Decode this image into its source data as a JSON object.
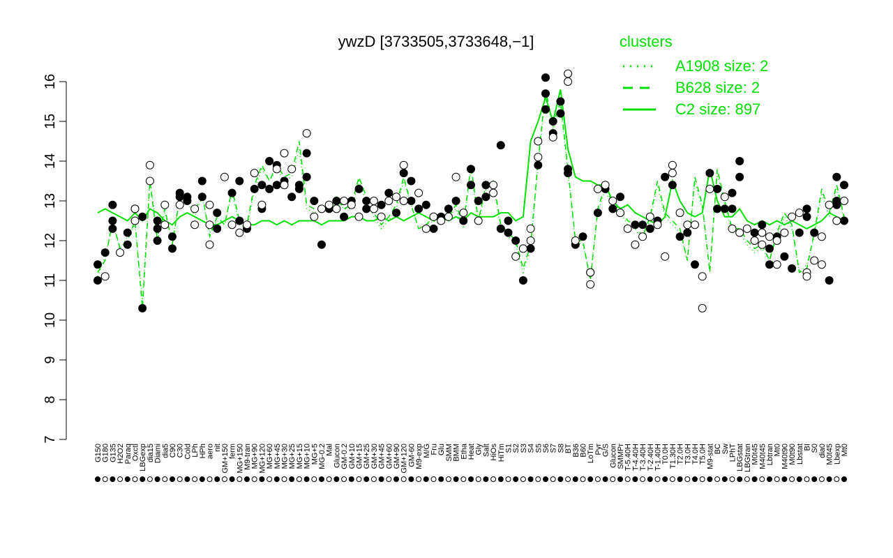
{
  "chart_data": {
    "type": "line",
    "title": "ywzD [3733505,3733648,−1]",
    "xlabel": "",
    "ylabel": "",
    "ylim": [
      7,
      16.5
    ],
    "yticks": [
      7,
      8,
      9,
      10,
      11,
      12,
      13,
      14,
      15,
      16
    ],
    "grid": false,
    "legend": {
      "position": "top-right",
      "title": "clusters",
      "entries": [
        {
          "label": "A1908 size: 2",
          "style": "dotted",
          "color": "#00e000"
        },
        {
          "label": "B628 size: 2",
          "style": "dashed",
          "color": "#00e000"
        },
        {
          "label": "C2 size: 897",
          "style": "solid",
          "color": "#00e000"
        }
      ]
    },
    "x_tick_labels": [
      "G150",
      "G180",
      "G135",
      "H2O2",
      "Paraq",
      "Oxctl",
      "LBGexp",
      "dia15",
      "Diami",
      "dia5",
      "C90",
      "C30",
      "Cold",
      "LPh",
      "HPh",
      "aero",
      "nit",
      "GM+150",
      "ferm",
      "MG+150",
      "M9-tran",
      "MG+90",
      "MG+120",
      "MG+60",
      "MG+45",
      "MG+30",
      "MG+25",
      "MG+15",
      "MG+10",
      "MG+5",
      "MG-0.2",
      "Mal",
      "Glucon",
      "GM-0.2",
      "GM+10",
      "GM+15",
      "GM+25",
      "GM+30",
      "GM+45",
      "GM+60",
      "GM+90",
      "GM+120",
      "GM-60",
      "M9-exp",
      "M/G",
      "Fru",
      "Glu",
      "SMM",
      "BMM",
      "Etha",
      "Heat",
      "Gly",
      "Salt",
      "HiOs",
      "HiTm",
      "S1",
      "S2",
      "S3",
      "S4",
      "S5",
      "S6",
      "S7",
      "S8",
      "BT",
      "B36",
      "B60",
      "LoTm",
      "Pyr",
      "G/S",
      "Glucon",
      "SMMPr",
      "T-5.40H",
      "T-4.40H",
      "T-3.40H",
      "T-2.40H",
      "T-1.40H",
      "T0.0H",
      "T1.30H",
      "T2.0H",
      "T3.0H",
      "T4.0H",
      "T5.0H",
      "M9-stat",
      "BC",
      "Sw",
      "LPhT",
      "LBGstat",
      "LBGtran",
      "M0t45",
      "M40t45",
      "Lbtran",
      "Mt0",
      "M40t90",
      "M0t90",
      "Lbstat",
      "BI",
      "S0",
      "dia0",
      "M0t45",
      "Lbexp",
      "Mt0"
    ],
    "series": [
      {
        "name": "C2 size: 897",
        "style": "solid",
        "y": [
          12.7,
          12.8,
          12.7,
          12.6,
          12.5,
          12.7,
          12.5,
          12.8,
          12.7,
          12.5,
          12.4,
          12.6,
          12.7,
          12.6,
          12.5,
          12.4,
          12.4,
          12.5,
          12.6,
          12.5,
          12.4,
          12.4,
          12.5,
          12.5,
          12.4,
          12.5,
          12.4,
          12.5,
          12.5,
          12.5,
          12.4,
          12.5,
          12.5,
          12.5,
          12.6,
          12.6,
          12.5,
          12.5,
          12.6,
          12.5,
          12.6,
          12.5,
          12.6,
          12.7,
          12.6,
          12.5,
          12.6,
          12.5,
          12.6,
          12.5,
          12.7,
          12.6,
          12.6,
          12.6,
          12.7,
          12.7,
          12.5,
          12.6,
          14.5,
          15.0,
          15.6,
          15.0,
          15.8,
          14.3,
          13.6,
          13.5,
          13.5,
          13.4,
          13.4,
          13.0,
          12.8,
          12.9,
          12.7,
          12.6,
          12.5,
          12.4,
          12.6,
          13.5,
          13.0,
          12.7,
          12.6,
          12.7,
          13.8,
          13.0,
          12.6,
          12.6,
          12.8,
          12.5,
          12.4,
          12.5,
          12.4,
          12.5,
          12.4,
          12.5,
          12.4,
          12.3,
          12.4,
          12.5,
          12.7,
          12.6,
          12.5
        ]
      },
      {
        "name": "B628 size: 2",
        "style": "dashed",
        "y": [
          11.2,
          11.5,
          12.5,
          11.8,
          12.0,
          12.5,
          10.3,
          13.5,
          12.0,
          12.8,
          11.9,
          13.1,
          13.1,
          12.7,
          13.2,
          12.1,
          12.6,
          12.4,
          13.3,
          12.5,
          12.4,
          13.4,
          13.9,
          13.5,
          13.9,
          13.6,
          13.7,
          14.5,
          12.9,
          12.8,
          12.8,
          12.8,
          13.1,
          12.8,
          12.9,
          13.6,
          13.1,
          12.7,
          12.4,
          12.6,
          12.9,
          13.6,
          12.9,
          12.3,
          12.4,
          12.6,
          12.5,
          12.6,
          12.9,
          12.4,
          13.9,
          12.5,
          13.4,
          13.5,
          12.4,
          12.2,
          12.0,
          11.3,
          11.9,
          14.0,
          15.8,
          14.9,
          15.5,
          13.8,
          12.0,
          12.0,
          11.0,
          12.8,
          13.4,
          12.9,
          12.8,
          12.5,
          12.4,
          12.1,
          12.6,
          13.5,
          12.7,
          12.5,
          12.3,
          11.5,
          13.6,
          12.9,
          11.2,
          13.8,
          13.0,
          12.3,
          12.3,
          12.0,
          11.8,
          11.9,
          11.5,
          12.2,
          12.7,
          12.4,
          11.2,
          11.3,
          12.2,
          13.3,
          12.7,
          13.4,
          12.6
        ]
      },
      {
        "name": "A1908 size: 2",
        "style": "dotted",
        "y": [
          11.1,
          11.6,
          12.4,
          11.8,
          12.1,
          12.4,
          10.5,
          13.6,
          12.1,
          12.7,
          12.0,
          13.0,
          13.0,
          12.6,
          13.1,
          12.2,
          12.5,
          12.4,
          13.2,
          12.4,
          12.3,
          13.3,
          13.8,
          13.5,
          13.8,
          13.5,
          13.6,
          14.3,
          12.8,
          12.7,
          12.8,
          12.7,
          13.0,
          12.8,
          12.8,
          13.5,
          13.0,
          12.6,
          12.3,
          12.5,
          12.8,
          13.5,
          12.9,
          12.3,
          12.4,
          12.5,
          12.4,
          12.6,
          12.8,
          12.3,
          13.8,
          12.4,
          13.3,
          13.4,
          12.3,
          12.1,
          11.9,
          11.2,
          11.8,
          13.9,
          15.7,
          14.8,
          15.4,
          13.7,
          12.0,
          11.9,
          11.1,
          12.7,
          13.3,
          12.8,
          12.7,
          12.4,
          12.3,
          12.0,
          12.5,
          13.4,
          12.6,
          12.4,
          12.2,
          11.5,
          13.5,
          12.8,
          11.3,
          13.7,
          12.9,
          12.2,
          12.2,
          11.9,
          11.7,
          11.8,
          11.5,
          12.1,
          12.6,
          12.3,
          11.2,
          11.4,
          12.1,
          13.2,
          12.6,
          13.3,
          12.5
        ]
      }
    ],
    "points": {
      "filled": [
        [
          0,
          11.0
        ],
        [
          0,
          11.4
        ],
        [
          1,
          11.7
        ],
        [
          2,
          12.3
        ],
        [
          2,
          12.9
        ],
        [
          2,
          12.5
        ],
        [
          4,
          11.9
        ],
        [
          4,
          12.2
        ],
        [
          5,
          12.8
        ],
        [
          6,
          10.3
        ],
        [
          6,
          12.6
        ],
        [
          8,
          12.0
        ],
        [
          8,
          12.5
        ],
        [
          8,
          12.3
        ],
        [
          10,
          11.8
        ],
        [
          10,
          12.1
        ],
        [
          11,
          13.1
        ],
        [
          11,
          13.2
        ],
        [
          12,
          13.0
        ],
        [
          12,
          13.1
        ],
        [
          14,
          13.5
        ],
        [
          14,
          13.1
        ],
        [
          16,
          12.3
        ],
        [
          16,
          12.7
        ],
        [
          18,
          13.2
        ],
        [
          19,
          12.5
        ],
        [
          19,
          13.5
        ],
        [
          20,
          12.3
        ],
        [
          21,
          13.3
        ],
        [
          22,
          12.8
        ],
        [
          22,
          13.4
        ],
        [
          23,
          14.0
        ],
        [
          23,
          13.3
        ],
        [
          24,
          13.4
        ],
        [
          24,
          13.9
        ],
        [
          25,
          13.5
        ],
        [
          26,
          13.1
        ],
        [
          27,
          13.3
        ],
        [
          27,
          13.4
        ],
        [
          28,
          14.2
        ],
        [
          28,
          13.6
        ],
        [
          29,
          13.0
        ],
        [
          30,
          11.9
        ],
        [
          31,
          12.8
        ],
        [
          32,
          13.0
        ],
        [
          33,
          12.6
        ],
        [
          34,
          13.0
        ],
        [
          35,
          13.3
        ],
        [
          36,
          12.8
        ],
        [
          36,
          13.0
        ],
        [
          38,
          12.9
        ],
        [
          39,
          13.2
        ],
        [
          40,
          12.7
        ],
        [
          41,
          13.7
        ],
        [
          42,
          13.5
        ],
        [
          42,
          13.0
        ],
        [
          43,
          12.8
        ],
        [
          44,
          12.9
        ],
        [
          45,
          12.3
        ],
        [
          46,
          12.6
        ],
        [
          47,
          12.8
        ],
        [
          48,
          13.0
        ],
        [
          49,
          12.5
        ],
        [
          50,
          13.4
        ],
        [
          50,
          13.8
        ],
        [
          51,
          13.0
        ],
        [
          52,
          13.4
        ],
        [
          52,
          13.1
        ],
        [
          54,
          14.4
        ],
        [
          54,
          12.3
        ],
        [
          55,
          12.2
        ],
        [
          55,
          12.5
        ],
        [
          56,
          12.0
        ],
        [
          57,
          11.0
        ],
        [
          58,
          11.8
        ],
        [
          59,
          13.9
        ],
        [
          60,
          15.7
        ],
        [
          60,
          16.1
        ],
        [
          60,
          15.3
        ],
        [
          61,
          14.7
        ],
        [
          61,
          15.0
        ],
        [
          62,
          15.5
        ],
        [
          62,
          15.2
        ],
        [
          63,
          13.8
        ],
        [
          63,
          13.7
        ],
        [
          64,
          11.9
        ],
        [
          65,
          12.1
        ],
        [
          67,
          12.7
        ],
        [
          68,
          13.3
        ],
        [
          69,
          12.8
        ],
        [
          70,
          13.1
        ],
        [
          72,
          12.4
        ],
        [
          73,
          12.4
        ],
        [
          74,
          12.3
        ],
        [
          75,
          12.5
        ],
        [
          76,
          13.6
        ],
        [
          77,
          13.4
        ],
        [
          78,
          12.1
        ],
        [
          79,
          12.2
        ],
        [
          80,
          11.4
        ],
        [
          82,
          13.7
        ],
        [
          83,
          13.3
        ],
        [
          83,
          12.8
        ],
        [
          84,
          12.8
        ],
        [
          85,
          13.2
        ],
        [
          85,
          12.8
        ],
        [
          86,
          14.0
        ],
        [
          86,
          13.6
        ],
        [
          88,
          12.2
        ],
        [
          89,
          12.4
        ],
        [
          90,
          11.4
        ],
        [
          90,
          11.8
        ],
        [
          91,
          12.1
        ],
        [
          92,
          11.6
        ],
        [
          93,
          11.3
        ],
        [
          94,
          12.2
        ],
        [
          95,
          12.8
        ],
        [
          95,
          12.6
        ],
        [
          96,
          12.2
        ],
        [
          98,
          11.0
        ],
        [
          99,
          12.9
        ],
        [
          99,
          13.0
        ],
        [
          99,
          13.6
        ],
        [
          100,
          13.4
        ],
        [
          100,
          12.5
        ]
      ],
      "open": [
        [
          1,
          11.1
        ],
        [
          3,
          11.7
        ],
        [
          5,
          12.5
        ],
        [
          5,
          12.8
        ],
        [
          7,
          13.9
        ],
        [
          7,
          13.5
        ],
        [
          9,
          12.9
        ],
        [
          9,
          12.4
        ],
        [
          11,
          12.9
        ],
        [
          13,
          12.8
        ],
        [
          13,
          12.4
        ],
        [
          15,
          11.9
        ],
        [
          15,
          12.4
        ],
        [
          15,
          12.9
        ],
        [
          17,
          13.6
        ],
        [
          18,
          12.4
        ],
        [
          19,
          12.2
        ],
        [
          20,
          12.4
        ],
        [
          21,
          13.7
        ],
        [
          22,
          12.9
        ],
        [
          24,
          13.8
        ],
        [
          25,
          13.4
        ],
        [
          25,
          14.2
        ],
        [
          26,
          13.8
        ],
        [
          28,
          14.7
        ],
        [
          29,
          12.6
        ],
        [
          30,
          12.8
        ],
        [
          31,
          12.9
        ],
        [
          32,
          12.8
        ],
        [
          33,
          13.0
        ],
        [
          34,
          12.9
        ],
        [
          35,
          12.6
        ],
        [
          37,
          12.8
        ],
        [
          37,
          13.0
        ],
        [
          38,
          12.6
        ],
        [
          39,
          13.0
        ],
        [
          40,
          13.1
        ],
        [
          41,
          13.9
        ],
        [
          41,
          13.0
        ],
        [
          43,
          13.2
        ],
        [
          44,
          12.3
        ],
        [
          45,
          12.6
        ],
        [
          46,
          12.5
        ],
        [
          47,
          12.6
        ],
        [
          48,
          13.6
        ],
        [
          49,
          12.7
        ],
        [
          51,
          12.5
        ],
        [
          53,
          13.4
        ],
        [
          53,
          13.2
        ],
        [
          56,
          11.6
        ],
        [
          57,
          11.8
        ],
        [
          58,
          12.3
        ],
        [
          58,
          12.0
        ],
        [
          59,
          14.5
        ],
        [
          59,
          14.1
        ],
        [
          61,
          14.6
        ],
        [
          63,
          16.2
        ],
        [
          63,
          16.0
        ],
        [
          64,
          12.0
        ],
        [
          66,
          11.2
        ],
        [
          66,
          10.9
        ],
        [
          66,
          11.2
        ],
        [
          67,
          13.3
        ],
        [
          68,
          13.4
        ],
        [
          69,
          13.0
        ],
        [
          70,
          12.7
        ],
        [
          71,
          12.3
        ],
        [
          72,
          11.9
        ],
        [
          73,
          12.1
        ],
        [
          74,
          12.6
        ],
        [
          75,
          12.4
        ],
        [
          76,
          11.6
        ],
        [
          77,
          13.7
        ],
        [
          77,
          13.9
        ],
        [
          78,
          12.7
        ],
        [
          79,
          12.4
        ],
        [
          80,
          12.4
        ],
        [
          81,
          11.1
        ],
        [
          81,
          10.3
        ],
        [
          82,
          13.3
        ],
        [
          84,
          13.1
        ],
        [
          85,
          12.3
        ],
        [
          86,
          12.2
        ],
        [
          87,
          12.3
        ],
        [
          88,
          12.0
        ],
        [
          89,
          11.9
        ],
        [
          89,
          12.2
        ],
        [
          90,
          12.1
        ],
        [
          91,
          11.4
        ],
        [
          91,
          12.0
        ],
        [
          92,
          12.2
        ],
        [
          93,
          12.6
        ],
        [
          94,
          12.7
        ],
        [
          95,
          11.2
        ],
        [
          95,
          11.1
        ],
        [
          96,
          11.5
        ],
        [
          97,
          11.4
        ],
        [
          97,
          12.1
        ],
        [
          98,
          12.9
        ],
        [
          99,
          12.5
        ],
        [
          100,
          13.0
        ]
      ]
    }
  }
}
